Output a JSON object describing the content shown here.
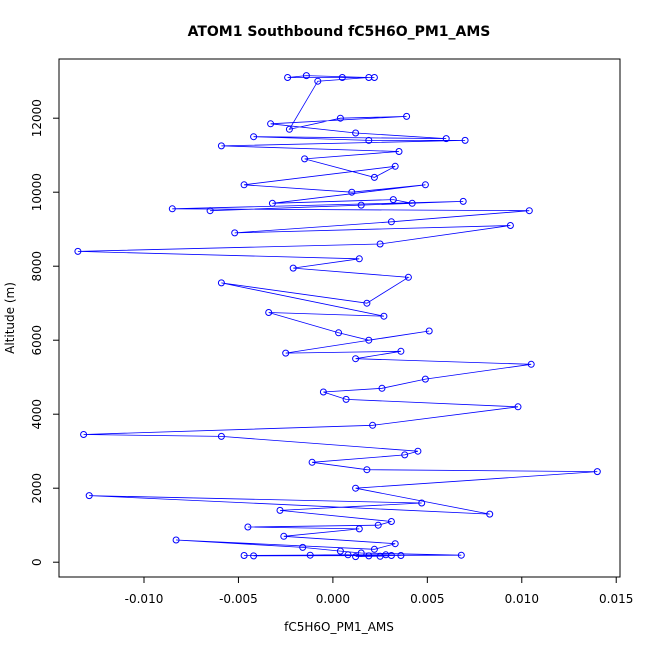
{
  "chart_data": {
    "type": "line",
    "title": "ATOM1 Southbound fC5H6O_PM1_AMS",
    "xlabel": "fC5H6O_PM1_AMS",
    "ylabel": "Altitude (m)",
    "xlim": [
      -0.0145,
      0.0152
    ],
    "ylim": [
      -400,
      13600
    ],
    "xticks": [
      -0.01,
      -0.005,
      0.0,
      0.005,
      0.01,
      0.015
    ],
    "xtick_labels": [
      "-0.010",
      "-0.005",
      "0.000",
      "0.005",
      "0.010",
      "0.015"
    ],
    "yticks": [
      0,
      2000,
      4000,
      6000,
      8000,
      10000,
      12000
    ],
    "ytick_labels": [
      "0",
      "2000",
      "4000",
      "6000",
      "8000",
      "10000",
      "12000"
    ],
    "grid": false,
    "colors": {
      "series": "#0000ff"
    },
    "series": [
      {
        "points": [
          [
            0.0012,
            150
          ],
          [
            0.0025,
            160
          ],
          [
            0.0031,
            180
          ],
          [
            0.0019,
            170
          ],
          [
            0.0008,
            200
          ],
          [
            -0.0012,
            190
          ],
          [
            -0.0042,
            170
          ],
          [
            0.0036,
            180
          ],
          [
            0.0028,
            200
          ],
          [
            -0.0047,
            180
          ],
          [
            0.0068,
            190
          ],
          [
            0.0015,
            250
          ],
          [
            0.0004,
            300
          ],
          [
            -0.0016,
            400
          ],
          [
            -0.0083,
            600
          ],
          [
            0.0022,
            350
          ],
          [
            0.0033,
            500
          ],
          [
            -0.0026,
            700
          ],
          [
            0.0014,
            900
          ],
          [
            -0.0045,
            950
          ],
          [
            0.0024,
            1000
          ],
          [
            0.0031,
            1100
          ],
          [
            -0.0028,
            1400
          ],
          [
            0.0047,
            1600
          ],
          [
            -0.0129,
            1800
          ],
          [
            0.0083,
            1300
          ],
          [
            0.0012,
            2000
          ],
          [
            0.014,
            2450
          ],
          [
            0.0018,
            2500
          ],
          [
            -0.0011,
            2700
          ],
          [
            0.0038,
            2900
          ],
          [
            0.0045,
            3000
          ],
          [
            -0.0059,
            3400
          ],
          [
            -0.0132,
            3450
          ],
          [
            0.0021,
            3700
          ],
          [
            0.0098,
            4200
          ],
          [
            0.0007,
            4400
          ],
          [
            -0.0005,
            4600
          ],
          [
            0.0026,
            4700
          ],
          [
            0.0049,
            4950
          ],
          [
            0.0105,
            5350
          ],
          [
            0.0012,
            5500
          ],
          [
            0.0036,
            5700
          ],
          [
            -0.0025,
            5650
          ],
          [
            0.0051,
            6250
          ],
          [
            0.0019,
            6000
          ],
          [
            0.0003,
            6200
          ],
          [
            -0.0034,
            6750
          ],
          [
            0.0027,
            6650
          ],
          [
            -0.0059,
            7550
          ],
          [
            0.0018,
            7000
          ],
          [
            0.004,
            7700
          ],
          [
            -0.0021,
            7950
          ],
          [
            0.0014,
            8200
          ],
          [
            -0.0135,
            8400
          ],
          [
            0.0025,
            8600
          ],
          [
            0.0094,
            9100
          ],
          [
            -0.0052,
            8900
          ],
          [
            0.0031,
            9200
          ],
          [
            0.0104,
            9500
          ],
          [
            -0.0085,
            9550
          ],
          [
            0.0069,
            9750
          ],
          [
            0.0015,
            9650
          ],
          [
            -0.0065,
            9500
          ],
          [
            0.0042,
            9700
          ],
          [
            0.0032,
            9800
          ],
          [
            -0.0032,
            9700
          ],
          [
            0.0049,
            10200
          ],
          [
            0.001,
            10000
          ],
          [
            -0.0047,
            10200
          ],
          [
            0.0033,
            10700
          ],
          [
            0.0022,
            10400
          ],
          [
            -0.0015,
            10900
          ],
          [
            0.0035,
            11100
          ],
          [
            -0.0059,
            11250
          ],
          [
            0.007,
            11400
          ],
          [
            0.0019,
            11400
          ],
          [
            -0.0042,
            11500
          ],
          [
            0.006,
            11450
          ],
          [
            0.0012,
            11600
          ],
          [
            -0.0033,
            11850
          ],
          [
            0.0039,
            12050
          ],
          [
            0.0004,
            12000
          ],
          [
            -0.0023,
            11700
          ],
          [
            -0.0008,
            13000
          ],
          [
            0.0019,
            13100
          ],
          [
            -0.0014,
            13150
          ],
          [
            -0.0024,
            13100
          ],
          [
            0.0022,
            13100
          ],
          [
            0.0005,
            13100
          ]
        ]
      }
    ]
  }
}
